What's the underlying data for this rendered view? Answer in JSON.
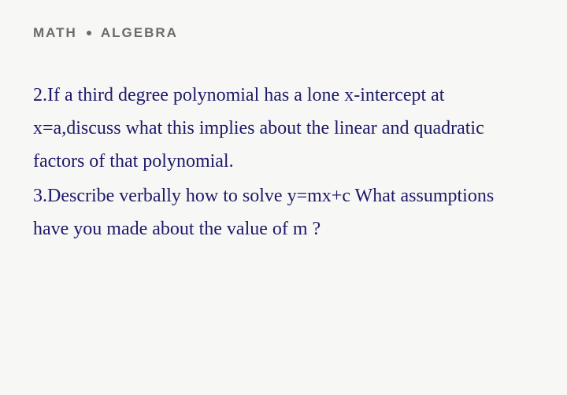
{
  "breadcrumb": {
    "category": "MATH",
    "subcategory": "ALGEBRA"
  },
  "content": {
    "q2": "2.If a third degree polynomial has a lone x-intercept at x=a,discuss what this implies about the linear and quadratic factors of that polynomial.",
    "q3": "3.Describe verbally how to solve y=mx+c What assumptions have you made about the value of m ?"
  },
  "style": {
    "background_color": "#f7f7f5",
    "breadcrumb_color": "#6b6b6b",
    "text_color": "#1e1a6b",
    "breadcrumb_fontsize": 17,
    "body_fontsize": 24,
    "body_line_height": 1.75
  }
}
